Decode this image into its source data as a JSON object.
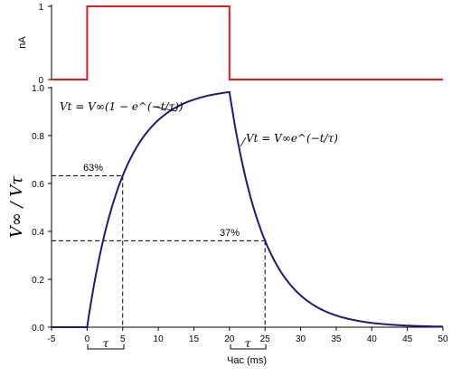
{
  "chart_data": [
    {
      "type": "line",
      "panel": "top",
      "ylabel": "nA",
      "yticks": [
        "0",
        "1"
      ],
      "xlim": [
        -5,
        50
      ],
      "ylim": [
        0,
        1
      ],
      "series": [
        {
          "color": "#e8171b",
          "x": [
            -5,
            0,
            0,
            20,
            20,
            50
          ],
          "y": [
            0,
            0,
            1,
            1,
            0,
            0
          ]
        }
      ]
    },
    {
      "type": "line",
      "panel": "bottom",
      "xlabel": "Час (ms)",
      "ylabel": "V∞ / Vτ",
      "xlim": [
        -5,
        50
      ],
      "ylim": [
        0,
        1
      ],
      "xticks": [
        "-5",
        "0",
        "5",
        "10",
        "15",
        "20",
        "25",
        "30",
        "35",
        "40",
        "45",
        "50"
      ],
      "yticks": [
        "0.0",
        "0.2",
        "0.4",
        "0.6",
        "0.8",
        "1.0"
      ],
      "tau_ms": 5,
      "charge_until_ms": 20,
      "series": [
        {
          "color": "#1a1a80",
          "x": [
            -5,
            0,
            1,
            2,
            3,
            4,
            5,
            6,
            8,
            10,
            12,
            15,
            18,
            20,
            21,
            22,
            23,
            24,
            25,
            27,
            30,
            33,
            36,
            40,
            45,
            50
          ],
          "y": [
            0,
            0,
            0.181,
            0.33,
            0.451,
            0.551,
            0.632,
            0.699,
            0.798,
            0.865,
            0.909,
            0.95,
            0.973,
            0.982,
            0.804,
            0.658,
            0.539,
            0.441,
            0.361,
            0.242,
            0.133,
            0.073,
            0.04,
            0.018,
            0.007,
            0.002
          ]
        }
      ],
      "annotations": {
        "pct63": "63%",
        "pct37": "37%",
        "tau": "τ",
        "eq_rise": "Vt = V∞(1 − e^(−t/τ))",
        "eq_decay": "Vt = V∞e^(−t/τ)"
      },
      "guides": [
        {
          "label": "63%",
          "x": 5,
          "y": 0.632
        },
        {
          "label": "37%",
          "x": 25,
          "y": 0.361
        }
      ]
    }
  ]
}
